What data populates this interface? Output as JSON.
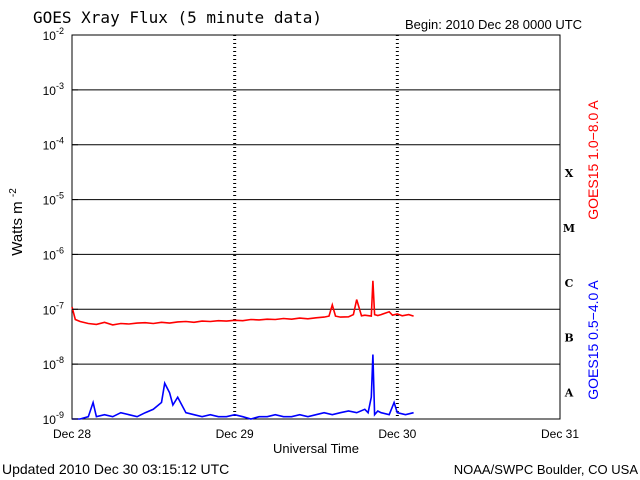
{
  "header": {
    "title": "GOES Xray Flux (5 minute data)",
    "begin": "Begin:  2010 Dec 28 0000 UTC"
  },
  "footer": {
    "updated": "Updated 2010 Dec 30 03:15:12 UTC",
    "credit": "NOAA/SWPC Boulder, CO USA"
  },
  "chart_data": {
    "type": "line",
    "title": "GOES Xray Flux (5 minute data)",
    "xlabel": "Universal Time",
    "ylabel": "Watts m",
    "ylabel_sup": "-2",
    "y_scale": "log",
    "ylim": [
      1e-09,
      0.01
    ],
    "xlim_days": [
      0,
      3
    ],
    "x_ticks": [
      {
        "day": 0,
        "label": "Dec 28"
      },
      {
        "day": 1,
        "label": "Dec 29"
      },
      {
        "day": 2,
        "label": "Dec 30"
      },
      {
        "day": 3,
        "label": "Dec 31"
      }
    ],
    "y_ticks": [
      {
        "exp": -2,
        "base": "10",
        "sup": "-2"
      },
      {
        "exp": -3,
        "base": "10",
        "sup": "-3"
      },
      {
        "exp": -4,
        "base": "10",
        "sup": "-4"
      },
      {
        "exp": -5,
        "base": "10",
        "sup": "-5"
      },
      {
        "exp": -6,
        "base": "10",
        "sup": "-6"
      },
      {
        "exp": -7,
        "base": "10",
        "sup": "-7"
      },
      {
        "exp": -8,
        "base": "10",
        "sup": "-8"
      },
      {
        "exp": -9,
        "base": "10",
        "sup": "-9"
      }
    ],
    "grid_horizontal": [
      -3,
      -4,
      -5,
      -6,
      -7,
      -8
    ],
    "flare_classes": [
      {
        "label": "X",
        "exp": -4
      },
      {
        "label": "M",
        "exp": -5
      },
      {
        "label": "C",
        "exp": -6
      },
      {
        "label": "B",
        "exp": -7
      },
      {
        "label": "A",
        "exp": -8
      }
    ],
    "series": [
      {
        "name": "GOES15 1.0−8.0 A",
        "color": "#ff0000",
        "x": [
          0.0,
          0.02,
          0.05,
          0.1,
          0.15,
          0.2,
          0.25,
          0.3,
          0.35,
          0.4,
          0.45,
          0.5,
          0.55,
          0.6,
          0.65,
          0.7,
          0.75,
          0.8,
          0.85,
          0.9,
          0.95,
          1.0,
          1.05,
          1.1,
          1.15,
          1.2,
          1.25,
          1.3,
          1.35,
          1.4,
          1.45,
          1.5,
          1.55,
          1.58,
          1.6,
          1.62,
          1.65,
          1.7,
          1.73,
          1.75,
          1.78,
          1.8,
          1.84,
          1.85,
          1.86,
          1.88,
          1.9,
          1.95,
          1.97,
          2.0,
          2.03,
          2.07,
          2.1
        ],
        "y": [
          1.1e-07,
          6.5e-08,
          6e-08,
          5.5e-08,
          5.3e-08,
          5.8e-08,
          5.2e-08,
          5.5e-08,
          5.4e-08,
          5.6e-08,
          5.7e-08,
          5.5e-08,
          5.8e-08,
          5.6e-08,
          5.9e-08,
          6e-08,
          5.8e-08,
          6.1e-08,
          6e-08,
          6.2e-08,
          6.1e-08,
          6.3e-08,
          6.2e-08,
          6.5e-08,
          6.4e-08,
          6.6e-08,
          6.5e-08,
          6.8e-08,
          6.6e-08,
          6.9e-08,
          6.7e-08,
          7e-08,
          7.2e-08,
          7.5e-08,
          1.2e-07,
          7.5e-08,
          7.2e-08,
          7.3e-08,
          8e-08,
          1.5e-07,
          7.6e-08,
          7.8e-08,
          7.5e-08,
          3.3e-07,
          8e-08,
          7.7e-08,
          8e-08,
          9e-08,
          7.8e-08,
          8.2e-08,
          7.6e-08,
          8e-08,
          7.5e-08
        ]
      },
      {
        "name": "GOES15 0.5−4.0 A",
        "color": "#0000ff",
        "x": [
          0.0,
          0.05,
          0.1,
          0.13,
          0.15,
          0.2,
          0.25,
          0.3,
          0.35,
          0.4,
          0.45,
          0.5,
          0.55,
          0.57,
          0.6,
          0.62,
          0.65,
          0.7,
          0.75,
          0.8,
          0.85,
          0.9,
          0.95,
          1.0,
          1.05,
          1.1,
          1.15,
          1.2,
          1.25,
          1.3,
          1.35,
          1.4,
          1.45,
          1.5,
          1.55,
          1.6,
          1.65,
          1.7,
          1.75,
          1.8,
          1.82,
          1.84,
          1.85,
          1.86,
          1.88,
          1.9,
          1.95,
          1.98,
          2.0,
          2.05,
          2.1
        ],
        "y": [
          1e-09,
          1e-09,
          1.1e-09,
          2e-09,
          1.1e-09,
          1.2e-09,
          1.1e-09,
          1.3e-09,
          1.2e-09,
          1.1e-09,
          1.3e-09,
          1.5e-09,
          2e-09,
          4.5e-09,
          3e-09,
          1.8e-09,
          2.5e-09,
          1.3e-09,
          1.2e-09,
          1.1e-09,
          1.2e-09,
          1.1e-09,
          1.1e-09,
          1.2e-09,
          1.1e-09,
          1e-09,
          1.1e-09,
          1.1e-09,
          1.2e-09,
          1.1e-09,
          1.1e-09,
          1.2e-09,
          1.1e-09,
          1.2e-09,
          1.3e-09,
          1.2e-09,
          1.3e-09,
          1.4e-09,
          1.3e-09,
          1.5e-09,
          1.3e-09,
          2.5e-09,
          1.5e-08,
          1.2e-09,
          1.4e-09,
          1.3e-09,
          1.2e-09,
          2e-09,
          1.3e-09,
          1.2e-09,
          1.3e-09
        ]
      }
    ]
  }
}
